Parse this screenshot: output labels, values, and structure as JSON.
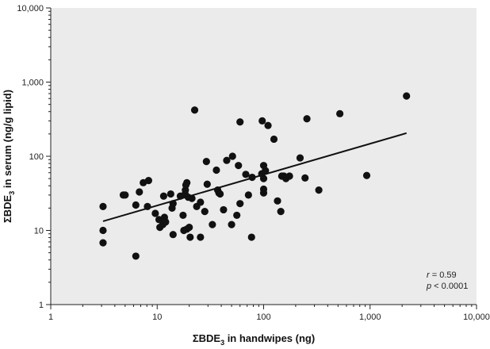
{
  "chart_data": {
    "type": "scatter",
    "xscale": "log",
    "yscale": "log",
    "xlim": [
      1,
      10000
    ],
    "ylim": [
      1,
      10000
    ],
    "xlabel_prefix": "ΣBDE",
    "xlabel_subscript": "3",
    "xlabel_suffix": " in handwipes (ng)",
    "ylabel_prefix": "ΣBDE",
    "ylabel_subscript": "3",
    "ylabel_suffix": " in serum (ng/g lipid)",
    "xticks": [
      {
        "value": 1,
        "label": "1"
      },
      {
        "value": 10,
        "label": "10"
      },
      {
        "value": 100,
        "label": "100"
      },
      {
        "value": 1000,
        "label": "1,000"
      },
      {
        "value": 10000,
        "label": "10,000"
      }
    ],
    "yticks": [
      {
        "value": 1,
        "label": "1"
      },
      {
        "value": 10,
        "label": "10"
      },
      {
        "value": 100,
        "label": "100"
      },
      {
        "value": 1000,
        "label": "1,000"
      },
      {
        "value": 10000,
        "label": "10,000"
      }
    ],
    "grid": false,
    "background_color": "#ebebeb",
    "point_color": "#111111",
    "points": [
      [
        3.1,
        21
      ],
      [
        3.1,
        10
      ],
      [
        3.1,
        6.8
      ],
      [
        6.3,
        4.5
      ],
      [
        4.8,
        30
      ],
      [
        5,
        30
      ],
      [
        6.3,
        22
      ],
      [
        6.8,
        33
      ],
      [
        7.4,
        44
      ],
      [
        8.3,
        47
      ],
      [
        8.1,
        21
      ],
      [
        9.6,
        17
      ],
      [
        10.4,
        14
      ],
      [
        10.6,
        11
      ],
      [
        11.3,
        12
      ],
      [
        11.5,
        29
      ],
      [
        11.7,
        15
      ],
      [
        12,
        13
      ],
      [
        13.4,
        31
      ],
      [
        13.8,
        20
      ],
      [
        14.1,
        23
      ],
      [
        14.1,
        8.8
      ],
      [
        16.5,
        29
      ],
      [
        17.5,
        16
      ],
      [
        17.8,
        10
      ],
      [
        18.3,
        31
      ],
      [
        18.4,
        35
      ],
      [
        18.6,
        41
      ],
      [
        19,
        44
      ],
      [
        19,
        10.4
      ],
      [
        19.6,
        28
      ],
      [
        20,
        11
      ],
      [
        20.4,
        8.1
      ],
      [
        21.2,
        27
      ],
      [
        22.5,
        420
      ],
      [
        23.5,
        21
      ],
      [
        25.5,
        24
      ],
      [
        25.5,
        8.1
      ],
      [
        28,
        18
      ],
      [
        29.5,
        42
      ],
      [
        29,
        85
      ],
      [
        33,
        12
      ],
      [
        36,
        65
      ],
      [
        37,
        35
      ],
      [
        38,
        32
      ],
      [
        39,
        31
      ],
      [
        42,
        19
      ],
      [
        45,
        88
      ],
      [
        50,
        12
      ],
      [
        51,
        100
      ],
      [
        56,
        16
      ],
      [
        58,
        75
      ],
      [
        60,
        290
      ],
      [
        60,
        23
      ],
      [
        68,
        57
      ],
      [
        72,
        30
      ],
      [
        77,
        8.1
      ],
      [
        78,
        52
      ],
      [
        96,
        58
      ],
      [
        97,
        300
      ],
      [
        100,
        75
      ],
      [
        100,
        50
      ],
      [
        100,
        32
      ],
      [
        100,
        36
      ],
      [
        104,
        64
      ],
      [
        110,
        260
      ],
      [
        125,
        170
      ],
      [
        135,
        25
      ],
      [
        145,
        18
      ],
      [
        148,
        54
      ],
      [
        155,
        54
      ],
      [
        162,
        50
      ],
      [
        175,
        54
      ],
      [
        220,
        95
      ],
      [
        245,
        51
      ],
      [
        255,
        320
      ],
      [
        330,
        35
      ],
      [
        520,
        375
      ],
      [
        930,
        55
      ],
      [
        2200,
        650
      ]
    ],
    "regression_line": {
      "x": [
        3.1,
        2200
      ],
      "y": [
        13.3,
        205
      ],
      "color": "#111111"
    },
    "annotation": {
      "r_label": "r",
      "r_value": " = 0.59",
      "p_label": "p",
      "p_value": " < 0.0001"
    }
  }
}
